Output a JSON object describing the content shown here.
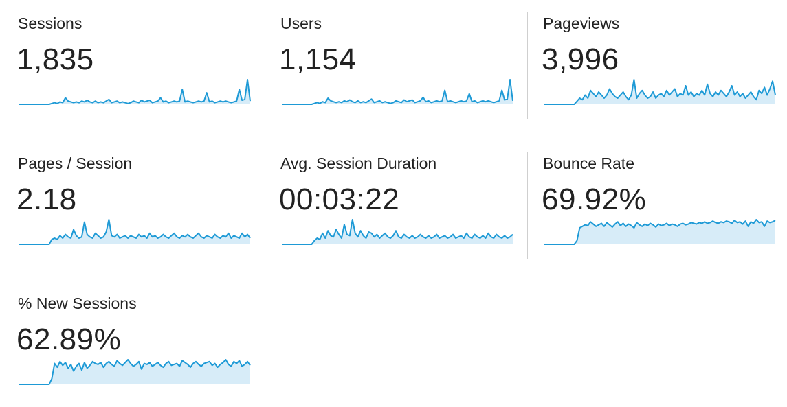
{
  "colors": {
    "line": "#1e9ad6",
    "fill": "#d7ecf8",
    "text": "#222222",
    "divider": "#cfcfcf"
  },
  "metrics": [
    {
      "label": "Sessions",
      "value": "1,835",
      "trend": [
        0,
        0,
        0,
        0,
        0,
        0,
        0,
        0,
        0,
        0,
        0,
        0,
        1,
        2,
        1,
        3,
        2,
        8,
        4,
        3,
        2,
        3,
        2,
        4,
        3,
        5,
        3,
        2,
        4,
        2,
        3,
        2,
        4,
        6,
        2,
        3,
        4,
        2,
        3,
        2,
        1,
        2,
        4,
        3,
        2,
        5,
        3,
        4,
        5,
        2,
        3,
        4,
        8,
        3,
        4,
        2,
        3,
        4,
        3,
        4,
        18,
        3,
        4,
        3,
        2,
        3,
        4,
        3,
        4,
        14,
        3,
        4,
        2,
        3,
        4,
        3,
        4,
        3,
        2,
        3,
        4,
        18,
        5,
        6,
        30,
        4
      ]
    },
    {
      "label": "Users",
      "value": "1,154",
      "trend": [
        0,
        0,
        0,
        0,
        0,
        0,
        0,
        0,
        0,
        0,
        0,
        0,
        1,
        2,
        1,
        3,
        2,
        7,
        4,
        3,
        2,
        3,
        2,
        4,
        3,
        5,
        3,
        2,
        4,
        2,
        3,
        2,
        4,
        6,
        2,
        3,
        4,
        2,
        3,
        2,
        1,
        2,
        4,
        3,
        2,
        5,
        3,
        4,
        5,
        2,
        3,
        4,
        8,
        3,
        4,
        2,
        3,
        4,
        3,
        4,
        16,
        3,
        4,
        3,
        2,
        3,
        4,
        3,
        4,
        12,
        3,
        4,
        2,
        3,
        4,
        3,
        4,
        3,
        2,
        3,
        4,
        16,
        5,
        6,
        28,
        4
      ]
    },
    {
      "label": "Pageviews",
      "value": "3,996",
      "trend": [
        0,
        0,
        0,
        0,
        0,
        0,
        0,
        0,
        0,
        0,
        0,
        0,
        2,
        4,
        3,
        6,
        4,
        9,
        7,
        5,
        8,
        6,
        4,
        6,
        10,
        7,
        5,
        4,
        6,
        8,
        5,
        3,
        6,
        16,
        4,
        7,
        9,
        6,
        4,
        5,
        8,
        4,
        6,
        7,
        5,
        9,
        6,
        8,
        10,
        5,
        7,
        6,
        12,
        6,
        8,
        5,
        7,
        6,
        9,
        6,
        13,
        7,
        5,
        8,
        6,
        9,
        7,
        5,
        8,
        12,
        6,
        8,
        5,
        7,
        4,
        6,
        8,
        5,
        3,
        9,
        7,
        11,
        6,
        10,
        15,
        6
      ]
    },
    {
      "label": "Pages / Session",
      "value": "2.18",
      "trend": [
        0,
        0,
        0,
        0,
        0,
        0,
        0,
        0,
        0,
        0,
        0,
        0,
        4,
        5,
        4,
        7,
        5,
        8,
        6,
        5,
        12,
        7,
        5,
        6,
        18,
        8,
        6,
        5,
        9,
        7,
        5,
        6,
        10,
        20,
        7,
        6,
        8,
        5,
        6,
        7,
        5,
        7,
        6,
        5,
        8,
        6,
        7,
        5,
        9,
        6,
        7,
        5,
        6,
        8,
        6,
        5,
        7,
        9,
        6,
        5,
        7,
        6,
        8,
        6,
        5,
        7,
        9,
        6,
        5,
        7,
        6,
        5,
        8,
        6,
        5,
        7,
        6,
        9,
        5,
        7,
        6,
        5,
        9,
        6,
        8,
        5
      ]
    },
    {
      "label": "Avg. Session Duration",
      "value": "00:03:22",
      "trend": [
        0,
        0,
        0,
        0,
        0,
        0,
        0,
        0,
        0,
        0,
        0,
        0,
        3,
        5,
        4,
        9,
        5,
        11,
        7,
        6,
        12,
        8,
        5,
        16,
        8,
        7,
        20,
        9,
        6,
        11,
        7,
        5,
        10,
        9,
        6,
        8,
        5,
        7,
        9,
        6,
        5,
        7,
        11,
        6,
        5,
        8,
        6,
        5,
        7,
        5,
        6,
        8,
        6,
        5,
        7,
        5,
        6,
        8,
        5,
        6,
        7,
        5,
        6,
        8,
        5,
        6,
        7,
        5,
        9,
        6,
        5,
        8,
        6,
        5,
        7,
        5,
        9,
        6,
        5,
        8,
        6,
        5,
        7,
        5,
        6,
        8
      ]
    },
    {
      "label": "Bounce Rate",
      "value": "69.92%",
      "trend": [
        0,
        0,
        0,
        0,
        0,
        0,
        0,
        0,
        0,
        0,
        0,
        0,
        5,
        22,
        24,
        26,
        25,
        30,
        27,
        24,
        26,
        28,
        24,
        29,
        26,
        23,
        27,
        30,
        25,
        28,
        24,
        27,
        25,
        22,
        29,
        26,
        24,
        27,
        25,
        28,
        26,
        23,
        27,
        25,
        26,
        28,
        25,
        27,
        26,
        24,
        27,
        28,
        26,
        27,
        29,
        28,
        27,
        29,
        28,
        30,
        28,
        29,
        31,
        29,
        28,
        30,
        29,
        31,
        30,
        28,
        32,
        29,
        30,
        27,
        31,
        24,
        30,
        28,
        33,
        29,
        30,
        24,
        31,
        29,
        30,
        32
      ]
    },
    {
      "label": "% New Sessions",
      "value": "62.89%",
      "trend": [
        0,
        0,
        0,
        0,
        0,
        0,
        0,
        0,
        0,
        0,
        0,
        0,
        6,
        22,
        18,
        24,
        20,
        23,
        17,
        21,
        14,
        19,
        22,
        15,
        23,
        17,
        20,
        24,
        22,
        21,
        23,
        18,
        22,
        24,
        21,
        19,
        25,
        22,
        20,
        23,
        26,
        22,
        19,
        21,
        24,
        16,
        22,
        21,
        23,
        19,
        21,
        23,
        20,
        18,
        22,
        24,
        20,
        21,
        22,
        19,
        25,
        23,
        21,
        18,
        22,
        24,
        21,
        19,
        22,
        23,
        24,
        20,
        22,
        18,
        21,
        23,
        26,
        21,
        19,
        24,
        22,
        25,
        19,
        21,
        24,
        20
      ]
    }
  ]
}
